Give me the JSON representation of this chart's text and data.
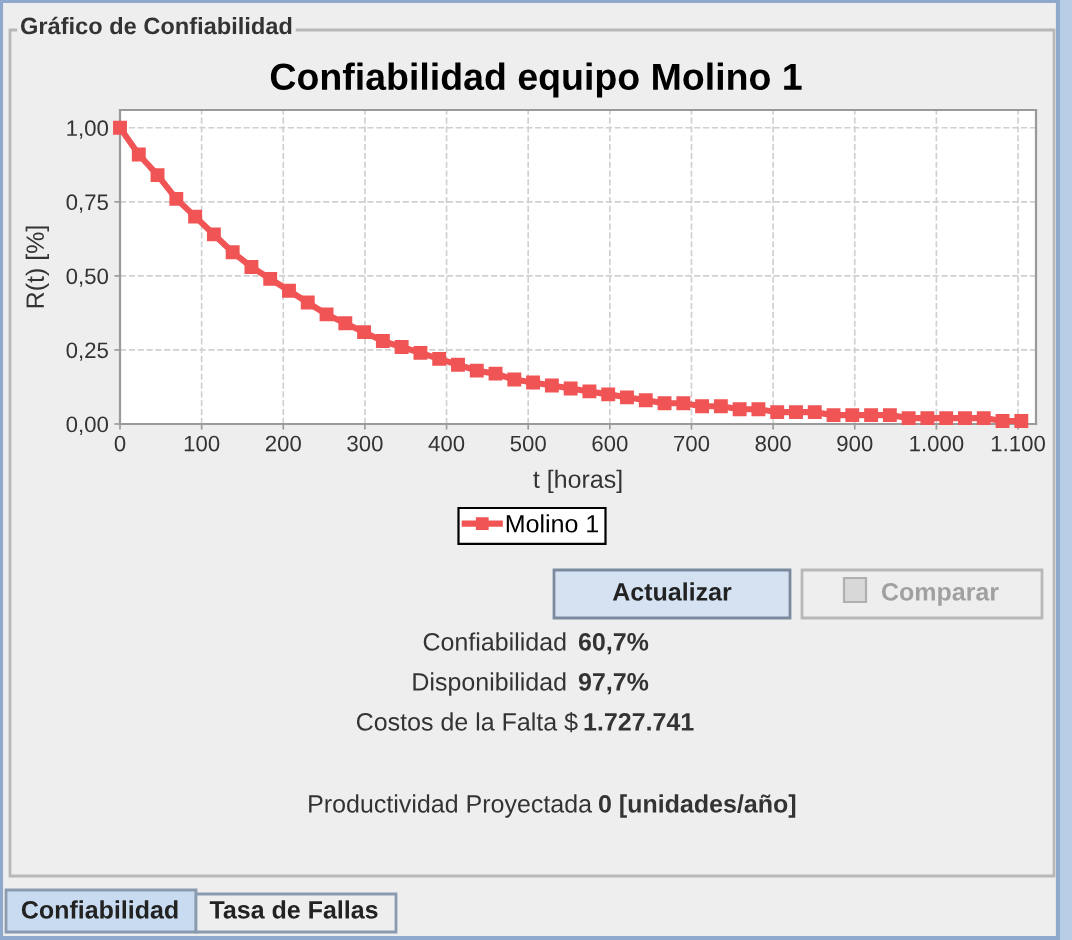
{
  "chart_data": {
    "type": "line",
    "title": "Confiabilidad equipo Molino 1",
    "xlabel": "t [horas]",
    "ylabel": "R(t) [%]",
    "x": [
      0,
      23,
      46,
      69,
      92,
      115,
      138,
      161,
      184,
      207,
      230,
      253,
      276,
      299,
      322,
      345,
      368,
      391,
      414,
      437,
      460,
      483,
      506,
      529,
      552,
      575,
      598,
      621,
      644,
      667,
      690,
      713,
      736,
      759,
      782,
      805,
      828,
      851,
      874,
      897,
      920,
      943,
      966,
      989,
      1012,
      1035,
      1058,
      1081,
      1104
    ],
    "series": [
      {
        "name": "Molino 1",
        "color": "#f05454",
        "values": [
          1.0,
          0.91,
          0.84,
          0.76,
          0.7,
          0.64,
          0.58,
          0.53,
          0.49,
          0.45,
          0.41,
          0.37,
          0.34,
          0.31,
          0.28,
          0.26,
          0.24,
          0.22,
          0.2,
          0.18,
          0.17,
          0.15,
          0.14,
          0.13,
          0.12,
          0.11,
          0.1,
          0.09,
          0.08,
          0.07,
          0.07,
          0.06,
          0.06,
          0.05,
          0.05,
          0.04,
          0.04,
          0.04,
          0.03,
          0.03,
          0.03,
          0.03,
          0.02,
          0.02,
          0.02,
          0.02,
          0.02,
          0.01,
          0.01
        ]
      }
    ],
    "xlim": [
      0,
      1122
    ],
    "ylim": [
      0,
      1.06
    ],
    "xticks": [
      0,
      100,
      200,
      300,
      400,
      500,
      600,
      700,
      800,
      900,
      {
        "value": 1000,
        "label": "1.000"
      },
      {
        "value": 1100,
        "label": "1.100"
      }
    ],
    "yticks": [
      {
        "value": 0,
        "label": "0,00"
      },
      {
        "value": 0.25,
        "label": "0,25"
      },
      {
        "value": 0.5,
        "label": "0,50"
      },
      {
        "value": 0.75,
        "label": "0,75"
      },
      {
        "value": 1.0,
        "label": "1,00"
      }
    ],
    "grid": true,
    "legend": "bottom",
    "marker": "square",
    "line_style": "solid",
    "annotations": [
      "Gráfico de Confiabilidad",
      "Actualizar",
      "Comparar",
      "Confiabilidad",
      "60,7%",
      "Disponibilidad",
      "97,7%",
      "Costos de la Falta $",
      "1.727.741",
      "Productividad Proyectada",
      "0 [unidades/año]",
      "Confiabilidad",
      "Tasa de Fallas"
    ]
  }
}
